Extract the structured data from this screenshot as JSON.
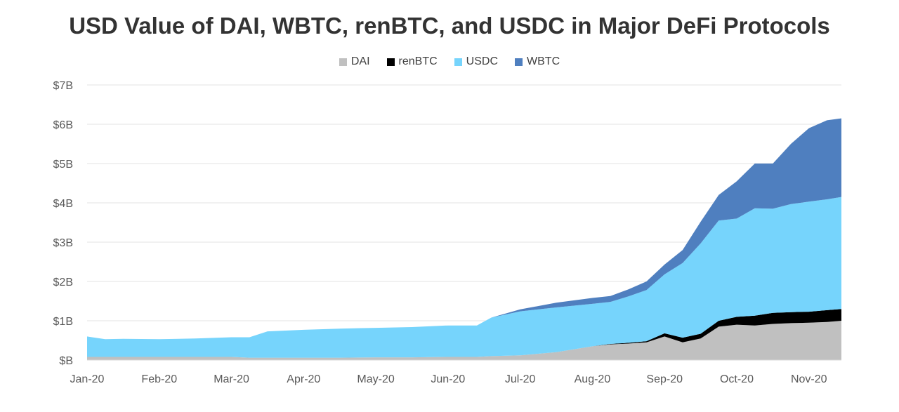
{
  "chart_data": {
    "type": "area",
    "stacked": true,
    "title": "USD Value of DAI, WBTC, renBTC, and USDC in Major DeFi Protocols",
    "xlabel": "",
    "ylabel": "",
    "ylim": [
      0,
      7
    ],
    "y_ticks": [
      {
        "value": 0,
        "label": "$B"
      },
      {
        "value": 1,
        "label": "$1B"
      },
      {
        "value": 2,
        "label": "$2B"
      },
      {
        "value": 3,
        "label": "$3B"
      },
      {
        "value": 4,
        "label": "$4B"
      },
      {
        "value": 5,
        "label": "$5B"
      },
      {
        "value": 6,
        "label": "$6B"
      },
      {
        "value": 7,
        "label": "$7B"
      }
    ],
    "x_ticks": [
      {
        "value": 0,
        "label": "Jan-20"
      },
      {
        "value": 1,
        "label": "Feb-20"
      },
      {
        "value": 2,
        "label": "Mar-20"
      },
      {
        "value": 3,
        "label": "Apr-20"
      },
      {
        "value": 4,
        "label": "May-20"
      },
      {
        "value": 5,
        "label": "Jun-20"
      },
      {
        "value": 6,
        "label": "Jul-20"
      },
      {
        "value": 7,
        "label": "Aug-20"
      },
      {
        "value": 8,
        "label": "Sep-20"
      },
      {
        "value": 9,
        "label": "Oct-20"
      },
      {
        "value": 10,
        "label": "Nov-20"
      }
    ],
    "grid": true,
    "legend_position": "top-center",
    "legend": [
      {
        "name": "DAI",
        "color": "#c0c0c0"
      },
      {
        "name": "renBTC",
        "color": "#000000"
      },
      {
        "name": "USDC",
        "color": "#76d4fc"
      },
      {
        "name": "WBTC",
        "color": "#4f7fbf"
      }
    ],
    "x": [
      0,
      0.25,
      0.5,
      1.0,
      1.5,
      2.0,
      2.25,
      2.5,
      3.0,
      3.5,
      4.0,
      4.5,
      5.0,
      5.4,
      5.6,
      6.0,
      6.5,
      7.0,
      7.25,
      7.5,
      7.75,
      8.0,
      8.25,
      8.5,
      8.75,
      9.0,
      9.25,
      9.5,
      9.75,
      10.0,
      10.25,
      10.45
    ],
    "series": [
      {
        "name": "DAI",
        "color": "#c0c0c0",
        "values": [
          0.08,
          0.08,
          0.08,
          0.08,
          0.08,
          0.08,
          0.06,
          0.06,
          0.06,
          0.06,
          0.07,
          0.07,
          0.08,
          0.08,
          0.1,
          0.12,
          0.2,
          0.35,
          0.4,
          0.42,
          0.45,
          0.6,
          0.45,
          0.55,
          0.85,
          0.9,
          0.88,
          0.92,
          0.94,
          0.95,
          0.97,
          1.0
        ]
      },
      {
        "name": "renBTC",
        "color": "#000000",
        "values": [
          0.0,
          0.0,
          0.0,
          0.0,
          0.0,
          0.0,
          0.0,
          0.0,
          0.0,
          0.0,
          0.0,
          0.0,
          0.0,
          0.0,
          0.0,
          0.0,
          0.0,
          0.0,
          0.01,
          0.02,
          0.03,
          0.08,
          0.12,
          0.12,
          0.15,
          0.2,
          0.25,
          0.28,
          0.28,
          0.28,
          0.3,
          0.3
        ]
      },
      {
        "name": "USDC",
        "color": "#76d4fc",
        "values": [
          0.52,
          0.45,
          0.46,
          0.45,
          0.47,
          0.5,
          0.52,
          0.67,
          0.71,
          0.74,
          0.75,
          0.77,
          0.8,
          0.8,
          0.98,
          1.12,
          1.14,
          1.08,
          1.07,
          1.18,
          1.3,
          1.5,
          1.9,
          2.3,
          2.55,
          2.5,
          2.73,
          2.65,
          2.75,
          2.8,
          2.82,
          2.85
        ]
      },
      {
        "name": "WBTC",
        "color": "#4f7fbf",
        "values": [
          0.0,
          0.0,
          0.0,
          0.0,
          0.0,
          0.0,
          0.0,
          0.0,
          0.0,
          0.0,
          0.0,
          0.0,
          0.0,
          0.0,
          0.0,
          0.05,
          0.12,
          0.15,
          0.15,
          0.18,
          0.22,
          0.25,
          0.33,
          0.55,
          0.65,
          0.95,
          1.14,
          1.15,
          1.53,
          1.87,
          2.01,
          2.0
        ]
      }
    ]
  }
}
